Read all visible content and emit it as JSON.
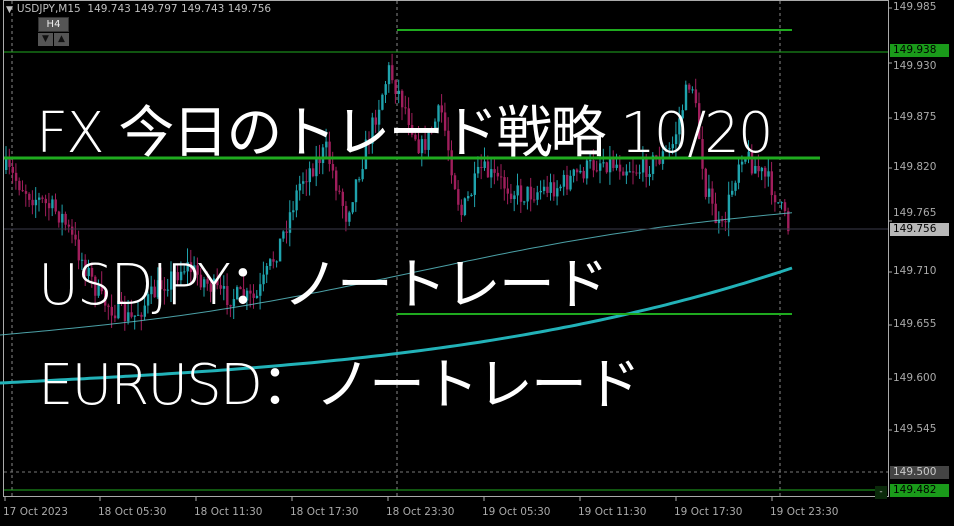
{
  "header": {
    "symbol": "USDJPY,M15",
    "ohlc": "149.743 149.797 149.743 149.756",
    "timeframe_button": "H4",
    "down_arrow": "▼",
    "up_arrow": "▲"
  },
  "overlay": {
    "title": "FX 今日のトレード戦略 10/20",
    "line1": "USDJPY：ノートレード",
    "line2": "EURUSD：ノートレード"
  },
  "price_axis": [
    "149.985",
    "149.930",
    "149.875",
    "149.820",
    "149.765",
    "149.710",
    "149.655",
    "149.600",
    "149.545"
  ],
  "price_badges": {
    "resistance": "149.938",
    "current": "149.756",
    "grid_level": "149.500",
    "support": "149.482",
    "minimize": "-"
  },
  "time_axis": [
    "17 Oct 2023",
    "18 Oct 05:30",
    "18 Oct 11:30",
    "18 Oct 17:30",
    "18 Oct 23:30",
    "19 Oct 05:30",
    "19 Oct 11:30",
    "19 Oct 17:30",
    "19 Oct 23:30"
  ],
  "colors": {
    "background": "#000000",
    "bull_candle": "#1fa3ad",
    "bear_candle": "#a01e5c",
    "level_line": "#1faa1f",
    "ma_slow": "#22b2b8",
    "ma_fast": "#5ec8d0",
    "axis": "#aaaaaa"
  },
  "chart": {
    "symbol": "USDJPY",
    "period": "M15",
    "last_price": 149.756,
    "horizontal_levels": [
      149.938,
      149.822,
      149.962,
      149.666,
      149.482
    ]
  }
}
